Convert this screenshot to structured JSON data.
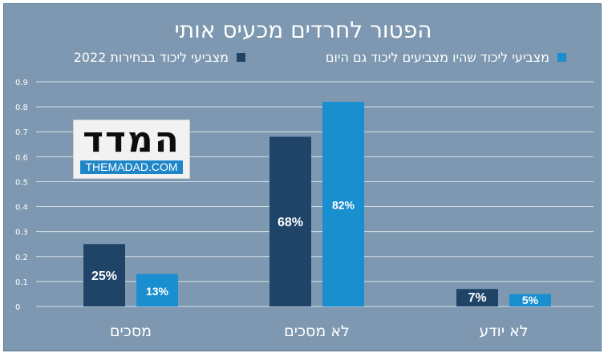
{
  "chart_data": {
    "type": "bar",
    "title": "הפטור לחרדים מכעיס אותי",
    "categories": [
      "מסכים",
      "לא מסכים",
      "לא יודע"
    ],
    "series": [
      {
        "name": "מצביעי ליכוד בבחירות 2022",
        "values": [
          0.25,
          0.68,
          0.07
        ],
        "labels": [
          "25%",
          "68%",
          "7%"
        ],
        "color": "#1f4468"
      },
      {
        "name": "מצביעי ליכוד שהיו מצביעים ליכוד גם היום",
        "values": [
          0.13,
          0.82,
          0.05
        ],
        "labels": [
          "13%",
          "82%",
          "5%"
        ],
        "color": "#1a8fd0"
      }
    ],
    "ylim": [
      0,
      0.9
    ],
    "yticks": [
      "0",
      "0.1",
      "0.2",
      "0.3",
      "0.4",
      "0.5",
      "0.6",
      "0.7",
      "0.8",
      "0.9"
    ],
    "grid": true,
    "legend": "top",
    "xlabel": "",
    "ylabel": ""
  },
  "logo": {
    "text": "המדד",
    "subtext": "THEMADAD.COM"
  }
}
